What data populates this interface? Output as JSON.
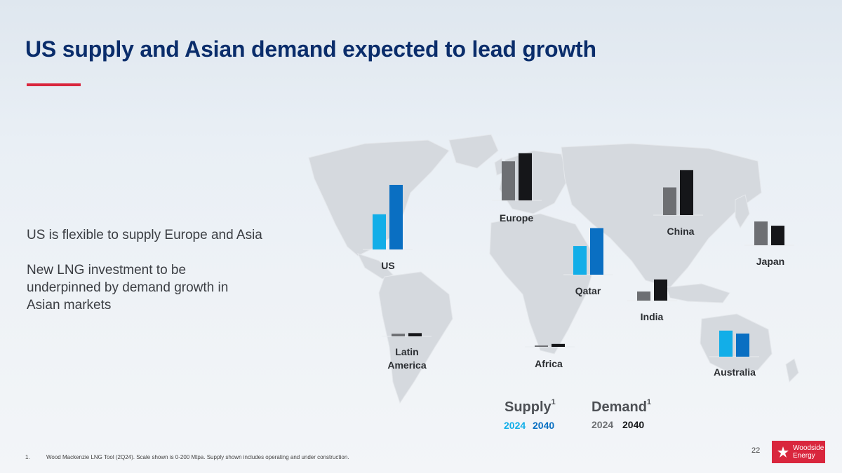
{
  "slide": {
    "title": "US supply and Asian demand expected to lead growth",
    "body_lines": [
      "US is flexible to supply Europe and Asia",
      "New LNG investment to be underpinned by demand growth in Asian markets"
    ],
    "page_number": "22",
    "footnote_number": "1.",
    "footnote_text": "Wood Mackenzie LNG Tool (2Q24). Scale shown is 0-200 Mtpa. Supply shown includes operating and under construction.",
    "logo_text_line1": "Woodside",
    "logo_text_line2": "Energy"
  },
  "legend": {
    "supply_label": "Supply",
    "demand_label": "Demand",
    "footnote_marker": "1",
    "supply_years": [
      "2024",
      "2040"
    ],
    "demand_years": [
      "2024",
      "2040"
    ]
  },
  "colors": {
    "supply_2024": "#12aee8",
    "supply_2040": "#0a6fc2",
    "demand_2024": "#6d6f73",
    "demand_2040": "#151619",
    "title": "#0a2d6b",
    "accent": "#d9263d"
  },
  "chart_data": {
    "type": "bar",
    "title": "",
    "ylim": [
      0,
      200
    ],
    "unit": "Mtpa",
    "series": [
      {
        "name": "Supply 2024"
      },
      {
        "name": "Supply 2040"
      },
      {
        "name": "Demand 2024"
      },
      {
        "name": "Demand 2040"
      }
    ],
    "regions": [
      {
        "name": "US",
        "label_lines": [
          "US"
        ],
        "kind": "supply",
        "values": [
          108,
          198
        ]
      },
      {
        "name": "Europe",
        "label_lines": [
          "Europe"
        ],
        "kind": "demand",
        "values": [
          120,
          145
        ]
      },
      {
        "name": "China",
        "label_lines": [
          "China"
        ],
        "kind": "demand",
        "values": [
          85,
          138
        ]
      },
      {
        "name": "Japan",
        "label_lines": [
          "Japan"
        ],
        "kind": "demand",
        "values": [
          73,
          60
        ]
      },
      {
        "name": "Qatar",
        "label_lines": [
          "Qatar"
        ],
        "kind": "supply",
        "values": [
          88,
          143
        ]
      },
      {
        "name": "India",
        "label_lines": [
          "India"
        ],
        "kind": "demand",
        "values": [
          28,
          65
        ]
      },
      {
        "name": "Latin America",
        "label_lines": [
          "Latin",
          "America"
        ],
        "kind": "demand",
        "values": [
          8,
          10
        ]
      },
      {
        "name": "Africa",
        "label_lines": [
          "Africa"
        ],
        "kind": "demand",
        "values": [
          1,
          9
        ]
      },
      {
        "name": "Australia",
        "label_lines": [
          "Australia"
        ],
        "kind": "supply",
        "values": [
          80,
          71
        ]
      }
    ]
  }
}
